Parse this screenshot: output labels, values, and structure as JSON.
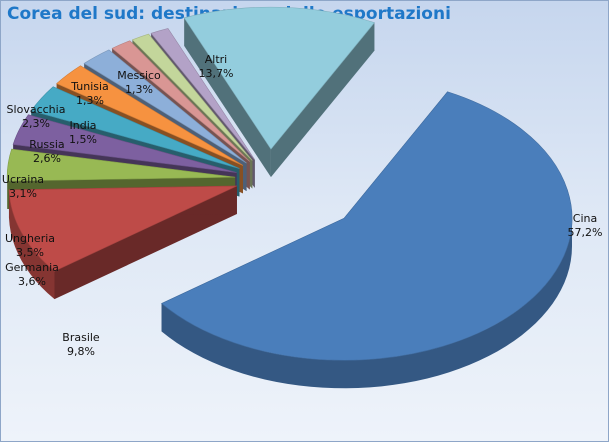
{
  "window": {
    "title": "Corea del sud: destinazione delle esportazioni"
  },
  "chart_data": {
    "type": "pie",
    "title": "Corea del sud: destinazione delle esportazioni",
    "style": "3D exploded pie",
    "legend": "none (data labels beside slices)",
    "categories": [
      "Cina",
      "Brasile",
      "Germania",
      "Ungheria",
      "Ucraina",
      "Russia",
      "Slovacchia",
      "India",
      "Tunisia",
      "Messico",
      "Altri"
    ],
    "values": [
      57.2,
      9.8,
      3.6,
      3.5,
      3.1,
      2.6,
      2.3,
      1.5,
      1.3,
      1.3,
      13.7
    ],
    "value_labels": [
      "57,2%",
      "9,8%",
      "3,6%",
      "3,5%",
      "3,1%",
      "2,6%",
      "2,3%",
      "1,5%",
      "1,3%",
      "1,3%",
      "13,7%"
    ],
    "colors": [
      "#4a7ebb",
      "#be4b48",
      "#98b954",
      "#7d60a0",
      "#46aac5",
      "#f69240",
      "#8dafd9",
      "#d99694",
      "#c3d69b",
      "#b3a2c7",
      "#93cddd"
    ]
  }
}
